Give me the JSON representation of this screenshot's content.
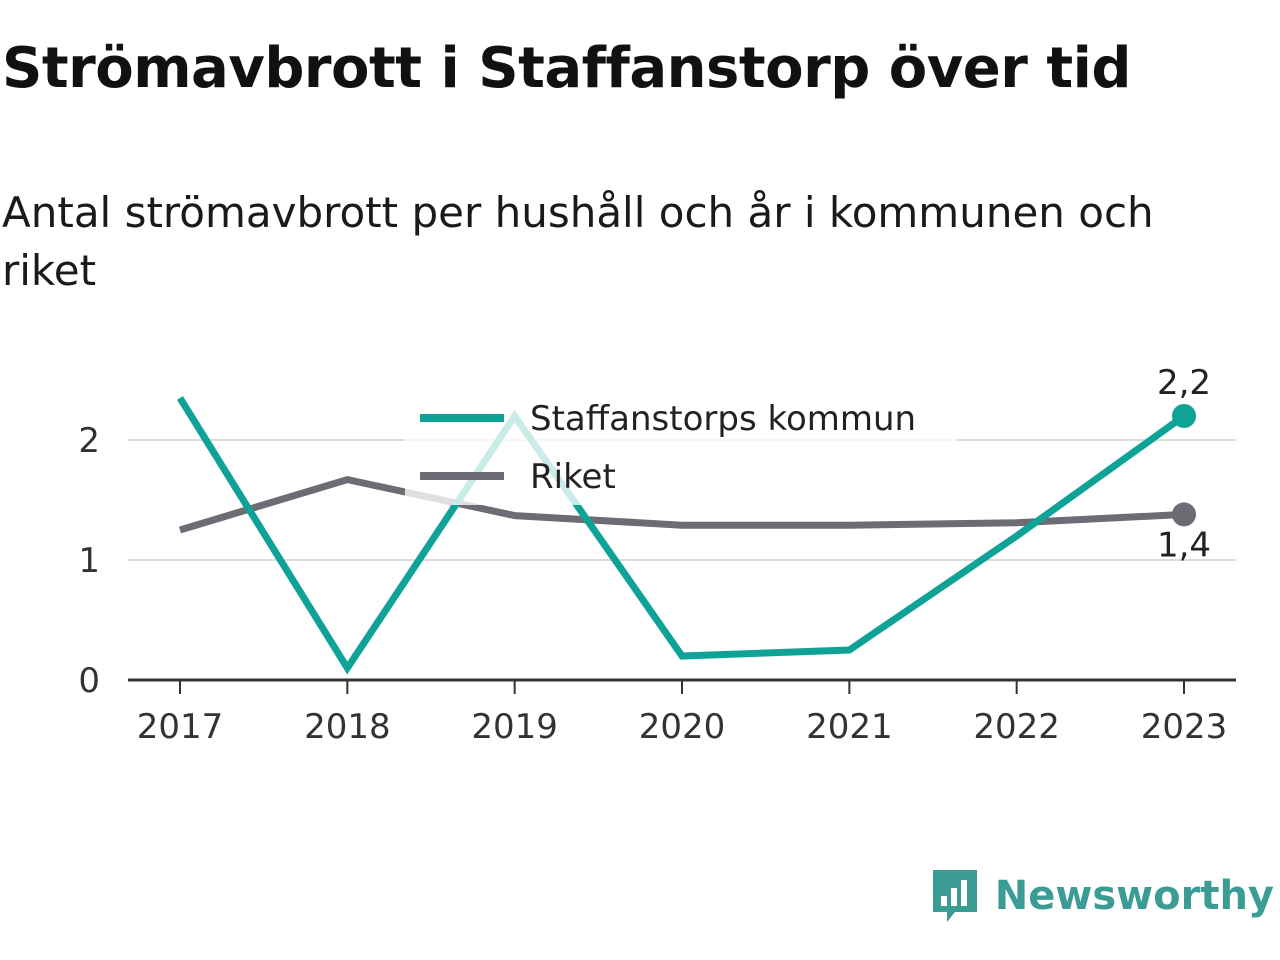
{
  "title": "Strömavbrott i Staffanstorp över tid",
  "subtitle": "Antal strömavbrott per hushåll och år i kommunen och riket",
  "brand": {
    "name": "Newsworthy",
    "icon": "newsworthy-logo-icon",
    "color": "#3a9c94"
  },
  "colors": {
    "kommun": "#0fa398",
    "riket": "#6d6c74",
    "grid": "#dcdcdc",
    "axis": "#333333"
  },
  "chart_data": {
    "type": "line",
    "title": "Strömavbrott i Staffanstorp över tid",
    "subtitle": "Antal strömavbrott per hushåll och år i kommunen och riket",
    "x": [
      "2017",
      "2018",
      "2019",
      "2020",
      "2021",
      "2022",
      "2023"
    ],
    "ylim": [
      0,
      2.3
    ],
    "yticks": [
      0,
      1,
      2
    ],
    "grid": true,
    "legend": "top-center",
    "series": [
      {
        "name": "Staffanstorps kommun",
        "color": "#0fa398",
        "values": [
          2.35,
          0.1,
          2.2,
          0.2,
          0.25,
          1.2,
          2.2
        ],
        "end_label": "2,2"
      },
      {
        "name": "Riket",
        "color": "#6d6c74",
        "values": [
          1.25,
          1.67,
          1.37,
          1.29,
          1.29,
          1.31,
          1.38
        ],
        "end_label": "1,4"
      }
    ]
  }
}
